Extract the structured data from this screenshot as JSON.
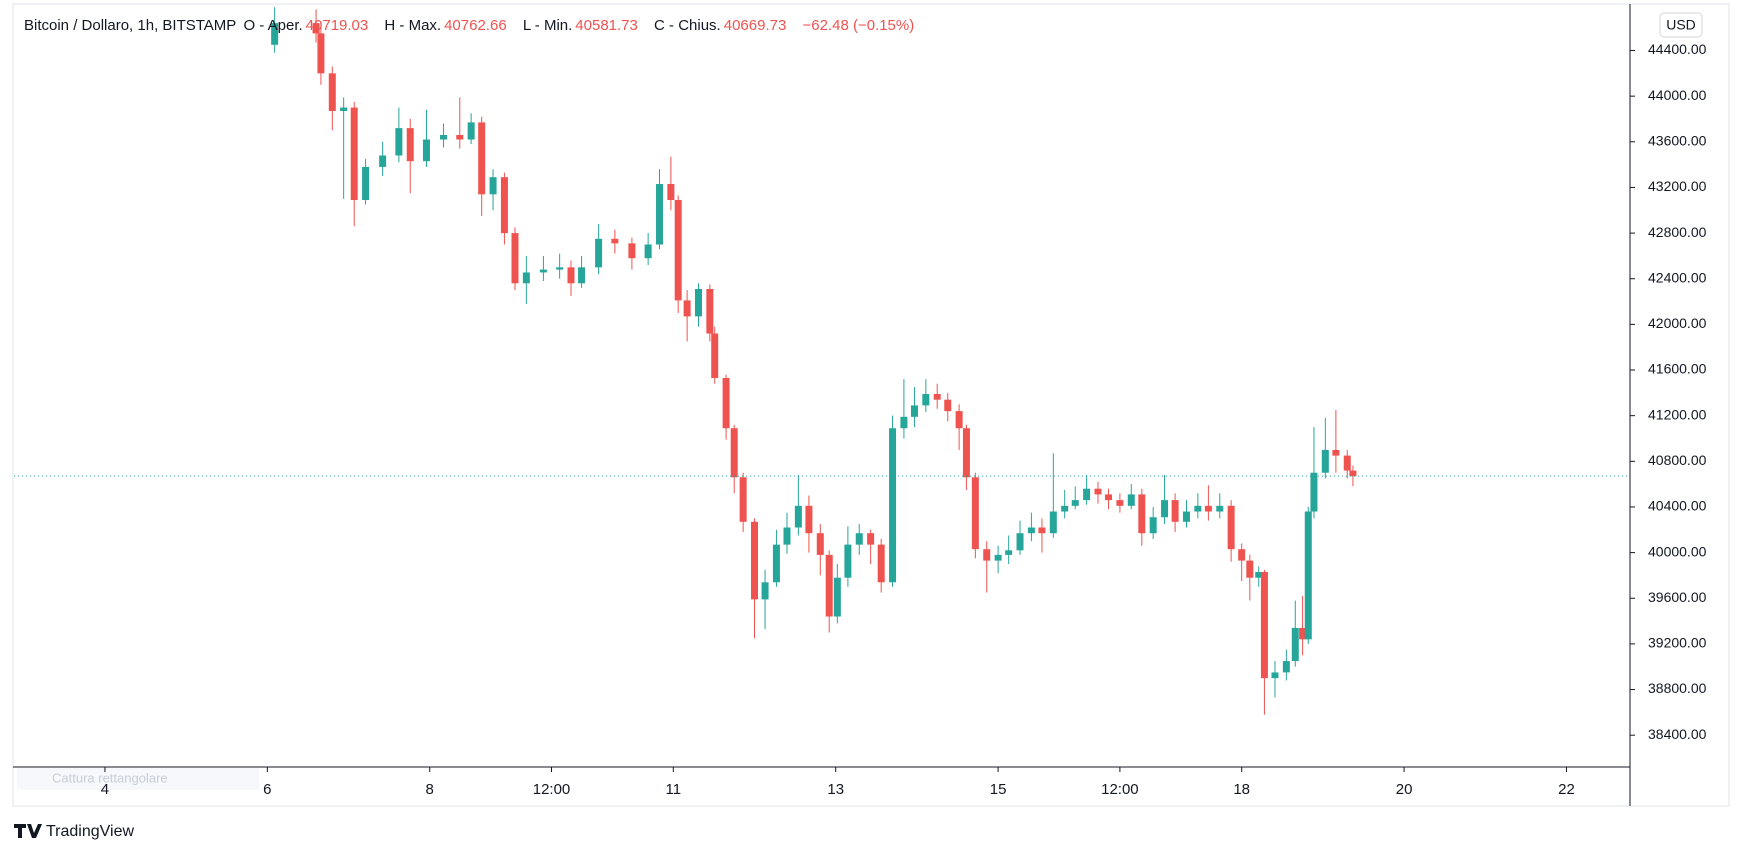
{
  "chart_data": {
    "type": "candlestick",
    "symbol": "Bitcoin / Dollaro, 1h, BITSTAMP",
    "open_label": "O - Aper.",
    "high_label": "H - Max.",
    "low_label": "L - Min.",
    "close_label": "C - Chius.",
    "change": "−62.48 (−0.15%)",
    "currency": "USD",
    "brand": "TradingView",
    "tool_hint": "Cattura rettangolare",
    "up_color": "#26a69a",
    "down_color": "#ef5350",
    "price_line": true,
    "xlim": [
      2.88,
      22.77
    ],
    "xticks": [
      4,
      6,
      8,
      {
        "value": 9.5,
        "label": "12:00"
      },
      11,
      13,
      15,
      {
        "value": 16.5,
        "label": "12:00"
      },
      18,
      20,
      22
    ],
    "ylim": [
      38130,
      44790
    ],
    "yticks": [
      {
        "value": 38400,
        "label": "38400.00"
      },
      {
        "value": 38800,
        "label": "38800.00"
      },
      {
        "value": 39200,
        "label": "39200.00"
      },
      {
        "value": 39600,
        "label": "39600.00"
      },
      {
        "value": 40000,
        "label": "40000.00"
      },
      {
        "value": 40400,
        "label": "40400.00"
      },
      {
        "value": 40800,
        "label": "40800.00"
      },
      {
        "value": 41200,
        "label": "41200.00"
      },
      {
        "value": 41600,
        "label": "41600.00"
      },
      {
        "value": 42000,
        "label": "42000.00"
      },
      {
        "value": 42400,
        "label": "42400.00"
      },
      {
        "value": 42800,
        "label": "42800.00"
      },
      {
        "value": 43200,
        "label": "43200.00"
      },
      {
        "value": 43600,
        "label": "43600.00"
      },
      {
        "value": 44000,
        "label": "44000.00"
      },
      {
        "value": 44400,
        "label": "44400.00"
      }
    ],
    "candles": [
      {
        "x": 6.09,
        "open": 44450,
        "high": 44780,
        "low": 44380,
        "close": 44640
      },
      {
        "x": 6.6,
        "open": 44640,
        "high": 44760,
        "low": 44470,
        "close": 44550
      },
      {
        "x": 6.66,
        "open": 44550,
        "high": 44600,
        "low": 44100,
        "close": 44200
      },
      {
        "x": 6.8,
        "open": 44200,
        "high": 44260,
        "low": 43700,
        "close": 43870
      },
      {
        "x": 6.94,
        "open": 43870,
        "high": 43990,
        "low": 43100,
        "close": 43900
      },
      {
        "x": 7.07,
        "open": 43900,
        "high": 43950,
        "low": 42860,
        "close": 43090
      },
      {
        "x": 7.21,
        "open": 43090,
        "high": 43450,
        "low": 43050,
        "close": 43380
      },
      {
        "x": 7.42,
        "open": 43380,
        "high": 43600,
        "low": 43300,
        "close": 43480
      },
      {
        "x": 7.62,
        "open": 43480,
        "high": 43900,
        "low": 43420,
        "close": 43720
      },
      {
        "x": 7.76,
        "open": 43720,
        "high": 43800,
        "low": 43150,
        "close": 43430
      },
      {
        "x": 7.96,
        "open": 43430,
        "high": 43880,
        "low": 43380,
        "close": 43620
      },
      {
        "x": 8.17,
        "open": 43620,
        "high": 43760,
        "low": 43550,
        "close": 43660
      },
      {
        "x": 8.37,
        "open": 43660,
        "high": 43990,
        "low": 43540,
        "close": 43620
      },
      {
        "x": 8.51,
        "open": 43620,
        "high": 43850,
        "low": 43580,
        "close": 43770
      },
      {
        "x": 8.64,
        "open": 43770,
        "high": 43820,
        "low": 42950,
        "close": 43140
      },
      {
        "x": 8.78,
        "open": 43140,
        "high": 43360,
        "low": 43000,
        "close": 43290
      },
      {
        "x": 8.92,
        "open": 43290,
        "high": 43330,
        "low": 42700,
        "close": 42800
      },
      {
        "x": 9.05,
        "open": 42800,
        "high": 42850,
        "low": 42300,
        "close": 42360
      },
      {
        "x": 9.19,
        "open": 42360,
        "high": 42600,
        "low": 42180,
        "close": 42455
      },
      {
        "x": 9.4,
        "open": 42455,
        "high": 42600,
        "low": 42380,
        "close": 42480
      },
      {
        "x": 9.6,
        "open": 42480,
        "high": 42620,
        "low": 42400,
        "close": 42500
      },
      {
        "x": 9.74,
        "open": 42500,
        "high": 42560,
        "low": 42250,
        "close": 42360
      },
      {
        "x": 9.87,
        "open": 42360,
        "high": 42600,
        "low": 42320,
        "close": 42500
      },
      {
        "x": 10.08,
        "open": 42500,
        "high": 42880,
        "low": 42440,
        "close": 42750
      },
      {
        "x": 10.28,
        "open": 42750,
        "high": 42830,
        "low": 42620,
        "close": 42710
      },
      {
        "x": 10.49,
        "open": 42710,
        "high": 42760,
        "low": 42480,
        "close": 42580
      },
      {
        "x": 10.69,
        "open": 42580,
        "high": 42800,
        "low": 42520,
        "close": 42700
      },
      {
        "x": 10.83,
        "open": 42700,
        "high": 43360,
        "low": 42660,
        "close": 43230
      },
      {
        "x": 10.97,
        "open": 43230,
        "high": 43470,
        "low": 43000,
        "close": 43090
      },
      {
        "x": 11.06,
        "open": 43090,
        "high": 43130,
        "low": 42100,
        "close": 42210
      },
      {
        "x": 11.17,
        "open": 42210,
        "high": 42300,
        "low": 41850,
        "close": 42070
      },
      {
        "x": 11.31,
        "open": 42070,
        "high": 42360,
        "low": 41980,
        "close": 42310
      },
      {
        "x": 11.45,
        "open": 42310,
        "high": 42350,
        "low": 41850,
        "close": 41920
      },
      {
        "x": 11.51,
        "open": 41920,
        "high": 41980,
        "low": 41480,
        "close": 41530
      },
      {
        "x": 11.65,
        "open": 41530,
        "high": 41560,
        "low": 40990,
        "close": 41090
      },
      {
        "x": 11.75,
        "open": 41090,
        "high": 41120,
        "low": 40520,
        "close": 40660
      },
      {
        "x": 11.86,
        "open": 40660,
        "high": 40700,
        "low": 40180,
        "close": 40270
      },
      {
        "x": 12.0,
        "open": 40270,
        "high": 40300,
        "low": 39250,
        "close": 39590
      },
      {
        "x": 12.13,
        "open": 39590,
        "high": 39850,
        "low": 39330,
        "close": 39740
      },
      {
        "x": 12.27,
        "open": 39740,
        "high": 40200,
        "low": 39700,
        "close": 40070
      },
      {
        "x": 12.4,
        "open": 40070,
        "high": 40350,
        "low": 39990,
        "close": 40220
      },
      {
        "x": 12.54,
        "open": 40220,
        "high": 40680,
        "low": 40150,
        "close": 40410
      },
      {
        "x": 12.67,
        "open": 40410,
        "high": 40500,
        "low": 40000,
        "close": 40170
      },
      {
        "x": 12.81,
        "open": 40170,
        "high": 40250,
        "low": 39800,
        "close": 39980
      },
      {
        "x": 12.92,
        "open": 39980,
        "high": 40020,
        "low": 39300,
        "close": 39440
      },
      {
        "x": 13.02,
        "open": 39440,
        "high": 39900,
        "low": 39380,
        "close": 39780
      },
      {
        "x": 13.15,
        "open": 39780,
        "high": 40230,
        "low": 39700,
        "close": 40070
      },
      {
        "x": 13.29,
        "open": 40070,
        "high": 40250,
        "low": 39980,
        "close": 40170
      },
      {
        "x": 13.43,
        "open": 40170,
        "high": 40200,
        "low": 39900,
        "close": 40070
      },
      {
        "x": 13.56,
        "open": 40070,
        "high": 40120,
        "low": 39650,
        "close": 39740
      },
      {
        "x": 13.7,
        "open": 39740,
        "high": 41200,
        "low": 39700,
        "close": 41090
      },
      {
        "x": 13.84,
        "open": 41090,
        "high": 41520,
        "low": 41000,
        "close": 41190
      },
      {
        "x": 13.97,
        "open": 41190,
        "high": 41450,
        "low": 41100,
        "close": 41290
      },
      {
        "x": 14.11,
        "open": 41290,
        "high": 41520,
        "low": 41230,
        "close": 41390
      },
      {
        "x": 14.25,
        "open": 41390,
        "high": 41480,
        "low": 41260,
        "close": 41340
      },
      {
        "x": 14.38,
        "open": 41340,
        "high": 41400,
        "low": 41150,
        "close": 41240
      },
      {
        "x": 14.52,
        "open": 41240,
        "high": 41300,
        "low": 40900,
        "close": 41090
      },
      {
        "x": 14.61,
        "open": 41090,
        "high": 41120,
        "low": 40550,
        "close": 40660
      },
      {
        "x": 14.72,
        "open": 40660,
        "high": 40700,
        "low": 39950,
        "close": 40030
      },
      {
        "x": 14.86,
        "open": 40030,
        "high": 40100,
        "low": 39650,
        "close": 39930
      },
      {
        "x": 15.0,
        "open": 39930,
        "high": 40060,
        "low": 39820,
        "close": 39980
      },
      {
        "x": 15.13,
        "open": 39980,
        "high": 40150,
        "low": 39900,
        "close": 40020
      },
      {
        "x": 15.27,
        "open": 40020,
        "high": 40280,
        "low": 39980,
        "close": 40170
      },
      {
        "x": 15.41,
        "open": 40170,
        "high": 40350,
        "low": 40100,
        "close": 40220
      },
      {
        "x": 15.54,
        "open": 40220,
        "high": 40300,
        "low": 40000,
        "close": 40170
      },
      {
        "x": 15.68,
        "open": 40170,
        "high": 40870,
        "low": 40130,
        "close": 40360
      },
      {
        "x": 15.82,
        "open": 40360,
        "high": 40550,
        "low": 40300,
        "close": 40410
      },
      {
        "x": 15.95,
        "open": 40410,
        "high": 40580,
        "low": 40380,
        "close": 40460
      },
      {
        "x": 16.09,
        "open": 40460,
        "high": 40680,
        "low": 40420,
        "close": 40560
      },
      {
        "x": 16.23,
        "open": 40560,
        "high": 40620,
        "low": 40430,
        "close": 40510
      },
      {
        "x": 16.36,
        "open": 40510,
        "high": 40560,
        "low": 40380,
        "close": 40460
      },
      {
        "x": 16.5,
        "open": 40460,
        "high": 40520,
        "low": 40350,
        "close": 40410
      },
      {
        "x": 16.64,
        "open": 40410,
        "high": 40600,
        "low": 40380,
        "close": 40510
      },
      {
        "x": 16.77,
        "open": 40510,
        "high": 40560,
        "low": 40060,
        "close": 40170
      },
      {
        "x": 16.91,
        "open": 40170,
        "high": 40400,
        "low": 40120,
        "close": 40310
      },
      {
        "x": 17.05,
        "open": 40310,
        "high": 40680,
        "low": 40250,
        "close": 40460
      },
      {
        "x": 17.18,
        "open": 40460,
        "high": 40520,
        "low": 40180,
        "close": 40270
      },
      {
        "x": 17.32,
        "open": 40270,
        "high": 40460,
        "low": 40220,
        "close": 40360
      },
      {
        "x": 17.46,
        "open": 40360,
        "high": 40520,
        "low": 40300,
        "close": 40410
      },
      {
        "x": 17.59,
        "open": 40410,
        "high": 40590,
        "low": 40280,
        "close": 40360
      },
      {
        "x": 17.73,
        "open": 40360,
        "high": 40520,
        "low": 40300,
        "close": 40410
      },
      {
        "x": 17.87,
        "open": 40410,
        "high": 40460,
        "low": 39920,
        "close": 40030
      },
      {
        "x": 18.0,
        "open": 40030,
        "high": 40080,
        "low": 39750,
        "close": 39930
      },
      {
        "x": 18.1,
        "open": 39930,
        "high": 39980,
        "low": 39580,
        "close": 39780
      },
      {
        "x": 18.21,
        "open": 39780,
        "high": 39880,
        "low": 39700,
        "close": 39830
      },
      {
        "x": 18.28,
        "open": 39830,
        "high": 39850,
        "low": 38580,
        "close": 38900
      },
      {
        "x": 18.41,
        "open": 38900,
        "high": 39050,
        "low": 38730,
        "close": 38950
      },
      {
        "x": 18.55,
        "open": 38950,
        "high": 39150,
        "low": 38880,
        "close": 39050
      },
      {
        "x": 18.66,
        "open": 39050,
        "high": 39580,
        "low": 39000,
        "close": 39340
      },
      {
        "x": 18.75,
        "open": 39340,
        "high": 39620,
        "low": 39100,
        "close": 39240
      },
      {
        "x": 18.82,
        "open": 39240,
        "high": 40400,
        "low": 39200,
        "close": 40360
      },
      {
        "x": 18.89,
        "open": 40360,
        "high": 41100,
        "low": 40300,
        "close": 40700
      },
      {
        "x": 19.03,
        "open": 40700,
        "high": 41180,
        "low": 40650,
        "close": 40900
      },
      {
        "x": 19.16,
        "open": 40900,
        "high": 41250,
        "low": 40700,
        "close": 40850
      },
      {
        "x": 19.3,
        "open": 40850,
        "high": 40900,
        "low": 40650,
        "close": 40719.03
      },
      {
        "x": 19.37,
        "open": 40719.03,
        "high": 40762.66,
        "low": 40581.73,
        "close": 40669.73
      }
    ]
  }
}
